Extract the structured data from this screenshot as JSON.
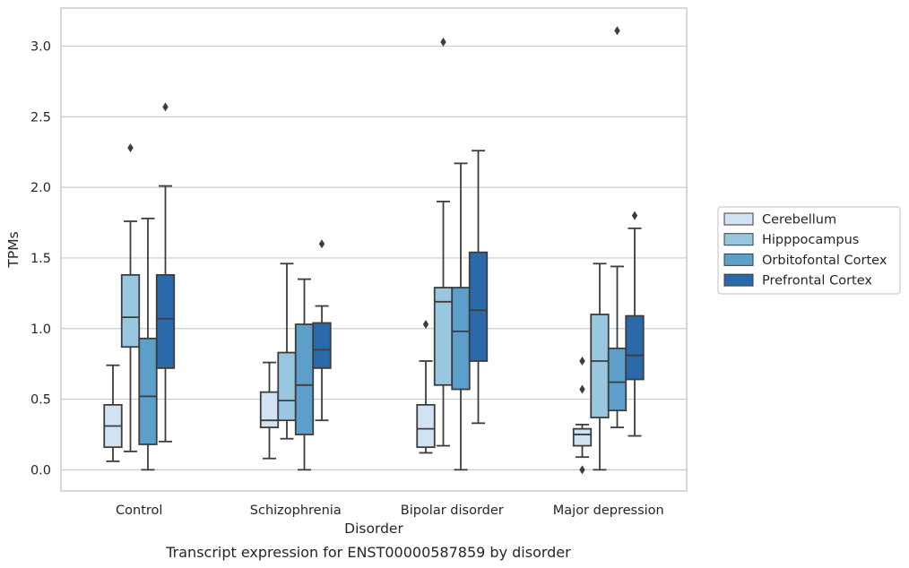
{
  "chart_data": {
    "type": "boxplot",
    "title": "",
    "caption": "Transcript expression for ENST00000587859 by disorder",
    "xlabel": "Disorder",
    "ylabel": "TPMs",
    "ylim": [
      -0.15,
      3.27
    ],
    "yticks": [
      0.0,
      0.5,
      1.0,
      1.5,
      2.0,
      2.5,
      3.0
    ],
    "ytick_labels": [
      "0.0",
      "0.5",
      "1.0",
      "1.5",
      "2.0",
      "2.5",
      "3.0"
    ],
    "grid": "horizontal",
    "legend_position": "right",
    "categories": [
      "Control",
      "Schizophrenia",
      "Bipolar disorder",
      "Major depression"
    ],
    "series": [
      {
        "name": "Cerebellum",
        "color": "#d1e2f2",
        "boxes": [
          {
            "q1": 0.16,
            "median": 0.31,
            "q3": 0.46,
            "whislo": 0.06,
            "whishi": 0.74,
            "fliers": []
          },
          {
            "q1": 0.3,
            "median": 0.35,
            "q3": 0.55,
            "whislo": 0.08,
            "whishi": 0.76,
            "fliers": []
          },
          {
            "q1": 0.16,
            "median": 0.29,
            "q3": 0.46,
            "whislo": 0.12,
            "whishi": 0.77,
            "fliers": [
              1.03
            ]
          },
          {
            "q1": 0.17,
            "median": 0.25,
            "q3": 0.29,
            "whislo": 0.09,
            "whishi": 0.32,
            "fliers": [
              0.77,
              0.57,
              0.0
            ]
          }
        ]
      },
      {
        "name": "Hipppocampus",
        "color": "#9ac7e0",
        "boxes": [
          {
            "q1": 0.87,
            "median": 1.08,
            "q3": 1.38,
            "whislo": 0.13,
            "whishi": 1.76,
            "fliers": [
              2.28
            ]
          },
          {
            "q1": 0.35,
            "median": 0.49,
            "q3": 0.83,
            "whislo": 0.22,
            "whishi": 1.46,
            "fliers": []
          },
          {
            "q1": 0.6,
            "median": 1.19,
            "q3": 1.29,
            "whislo": 0.17,
            "whishi": 1.9,
            "fliers": [
              3.03
            ]
          },
          {
            "q1": 0.37,
            "median": 0.77,
            "q3": 1.1,
            "whislo": 0.0,
            "whishi": 1.46,
            "fliers": []
          }
        ]
      },
      {
        "name": "Orbitofontal Cortex",
        "color": "#5b9fca",
        "boxes": [
          {
            "q1": 0.18,
            "median": 0.52,
            "q3": 0.93,
            "whislo": 0.0,
            "whishi": 1.78,
            "fliers": []
          },
          {
            "q1": 0.25,
            "median": 0.6,
            "q3": 1.03,
            "whislo": 0.0,
            "whishi": 1.35,
            "fliers": []
          },
          {
            "q1": 0.57,
            "median": 0.98,
            "q3": 1.29,
            "whislo": 0.0,
            "whishi": 2.17,
            "fliers": []
          },
          {
            "q1": 0.42,
            "median": 0.62,
            "q3": 0.86,
            "whislo": 0.3,
            "whishi": 1.44,
            "fliers": [
              3.11
            ]
          }
        ]
      },
      {
        "name": "Prefrontal Cortex",
        "color": "#2a6aab",
        "boxes": [
          {
            "q1": 0.72,
            "median": 1.07,
            "q3": 1.38,
            "whislo": 0.2,
            "whishi": 2.01,
            "fliers": [
              2.57
            ]
          },
          {
            "q1": 0.72,
            "median": 0.85,
            "q3": 1.04,
            "whislo": 0.35,
            "whishi": 1.16,
            "fliers": [
              1.6
            ]
          },
          {
            "q1": 0.77,
            "median": 1.13,
            "q3": 1.54,
            "whislo": 0.33,
            "whishi": 2.26,
            "fliers": []
          },
          {
            "q1": 0.64,
            "median": 0.81,
            "q3": 1.09,
            "whislo": 0.24,
            "whishi": 1.71,
            "fliers": [
              1.8
            ]
          }
        ]
      }
    ]
  }
}
